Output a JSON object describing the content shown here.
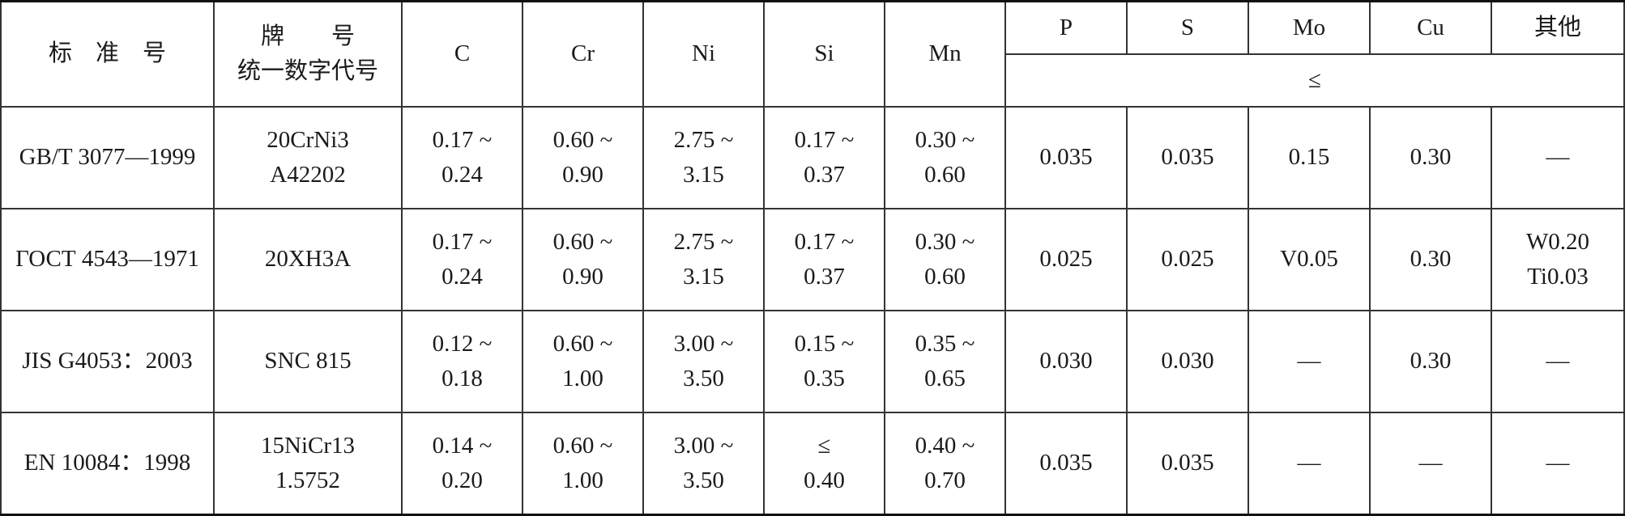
{
  "header": {
    "standard": "标　准　号",
    "grade_line1": "牌　　号",
    "grade_line2": "统一数字代号",
    "C": "C",
    "Cr": "Cr",
    "Ni": "Ni",
    "Si": "Si",
    "Mn": "Mn",
    "P": "P",
    "S": "S",
    "Mo": "Mo",
    "Cu": "Cu",
    "other": "其他",
    "max_symbol": "≤"
  },
  "rows": [
    {
      "standard": "GB/T 3077—1999",
      "grade": [
        "20CrNi3",
        "A42202"
      ],
      "C": [
        "0.17 ~",
        "0.24"
      ],
      "Cr": [
        "0.60 ~",
        "0.90"
      ],
      "Ni": [
        "2.75 ~",
        "3.15"
      ],
      "Si": [
        "0.17 ~",
        "0.37"
      ],
      "Mn": [
        "0.30 ~",
        "0.60"
      ],
      "P": "0.035",
      "S": "0.035",
      "Mo": "0.15",
      "Cu": "0.30",
      "other": [
        "—",
        ""
      ]
    },
    {
      "standard": "ГОСТ 4543—1971",
      "grade": [
        "20XH3A",
        ""
      ],
      "C": [
        "0.17 ~",
        "0.24"
      ],
      "Cr": [
        "0.60 ~",
        "0.90"
      ],
      "Ni": [
        "2.75 ~",
        "3.15"
      ],
      "Si": [
        "0.17 ~",
        "0.37"
      ],
      "Mn": [
        "0.30 ~",
        "0.60"
      ],
      "P": "0.025",
      "S": "0.025",
      "Mo": "V0.05",
      "Cu": "0.30",
      "other": [
        "W0.20",
        "Ti0.03"
      ]
    },
    {
      "standard": "JIS G4053：2003",
      "grade": [
        "SNC 815",
        ""
      ],
      "C": [
        "0.12 ~",
        "0.18"
      ],
      "Cr": [
        "0.60 ~",
        "1.00"
      ],
      "Ni": [
        "3.00 ~",
        "3.50"
      ],
      "Si": [
        "0.15 ~",
        "0.35"
      ],
      "Mn": [
        "0.35 ~",
        "0.65"
      ],
      "P": "0.030",
      "S": "0.030",
      "Mo": "—",
      "Cu": "0.30",
      "other": [
        "—",
        ""
      ]
    },
    {
      "standard": "EN 10084：1998",
      "grade": [
        "15NiCr13",
        "1.5752"
      ],
      "C": [
        "0.14 ~",
        "0.20"
      ],
      "Cr": [
        "0.60 ~",
        "1.00"
      ],
      "Ni": [
        "3.00 ~",
        "3.50"
      ],
      "Si": [
        "≤",
        "0.40"
      ],
      "Mn": [
        "0.40 ~",
        "0.70"
      ],
      "P": "0.035",
      "S": "0.035",
      "Mo": "—",
      "Cu": "—",
      "other": [
        "—",
        ""
      ]
    }
  ]
}
